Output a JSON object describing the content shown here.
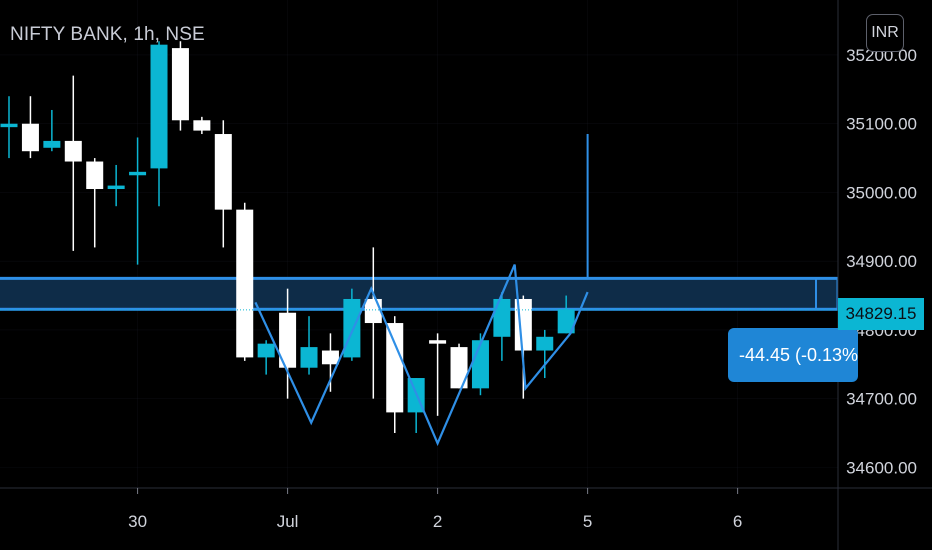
{
  "header": {
    "symbol_title": "NIFTY BANK, 1h, NSE",
    "currency": "INR"
  },
  "price_label": "34829.15",
  "change_tooltip": "-44.45 (-0.13%)",
  "colors": {
    "up_candle": "#0bb6d3",
    "down_candle": "#ffffff",
    "pattern_line": "#2f8fe6",
    "zone_fill": "#0e2c48",
    "zone_border": "#2f8fe6",
    "axis_text": "#d1d4dc",
    "grid": "#1e222d"
  },
  "chart_data": {
    "type": "candlestick",
    "title": "NIFTY BANK, 1h, NSE",
    "xlabel": "",
    "ylabel": "",
    "ylim": [
      34570,
      35280
    ],
    "y_ticks": [
      34600,
      34700,
      34800,
      34900,
      35000,
      35100,
      35200
    ],
    "y_tick_labels": [
      "34600.00",
      "34700.00",
      "34800.00",
      "34900.00",
      "35000.00",
      "35100.00",
      "35200.00"
    ],
    "x_ticks": [
      {
        "label": "30",
        "index": 6
      },
      {
        "label": "Jul",
        "index": 13
      },
      {
        "label": "2",
        "index": 20
      },
      {
        "label": "5",
        "index": 27
      },
      {
        "label": "6",
        "index": 34
      }
    ],
    "candles": [
      {
        "index": 0,
        "open": 35095,
        "high": 35140,
        "low": 35050,
        "close": 35100
      },
      {
        "index": 1,
        "open": 35100,
        "high": 35140,
        "low": 35050,
        "close": 35060
      },
      {
        "index": 2,
        "open": 35065,
        "high": 35120,
        "low": 35060,
        "close": 35075
      },
      {
        "index": 3,
        "open": 35075,
        "high": 35170,
        "low": 34915,
        "close": 35045
      },
      {
        "index": 4,
        "open": 35045,
        "high": 35050,
        "low": 34920,
        "close": 35005
      },
      {
        "index": 5,
        "open": 35005,
        "high": 35040,
        "low": 34980,
        "close": 35010
      },
      {
        "index": 6,
        "open": 35025,
        "high": 35080,
        "low": 34895,
        "close": 35030
      },
      {
        "index": 7,
        "open": 35035,
        "high": 35220,
        "low": 34980,
        "close": 35215
      },
      {
        "index": 8,
        "open": 35210,
        "high": 35220,
        "low": 35090,
        "close": 35105
      },
      {
        "index": 9,
        "open": 35105,
        "high": 35110,
        "low": 35085,
        "close": 35090
      },
      {
        "index": 10,
        "open": 35085,
        "high": 35105,
        "low": 34920,
        "close": 34975
      },
      {
        "index": 11,
        "open": 34975,
        "high": 34985,
        "low": 34755,
        "close": 34760
      },
      {
        "index": 12,
        "open": 34760,
        "high": 34785,
        "low": 34735,
        "close": 34780
      },
      {
        "index": 13,
        "open": 34825,
        "high": 34860,
        "low": 34700,
        "close": 34745
      },
      {
        "index": 14,
        "open": 34745,
        "high": 34820,
        "low": 34735,
        "close": 34775
      },
      {
        "index": 15,
        "open": 34770,
        "high": 34795,
        "low": 34710,
        "close": 34750
      },
      {
        "index": 16,
        "open": 34760,
        "high": 34860,
        "low": 34755,
        "close": 34845
      },
      {
        "index": 17,
        "open": 34845,
        "high": 34920,
        "low": 34700,
        "close": 34810
      },
      {
        "index": 18,
        "open": 34810,
        "high": 34820,
        "low": 34650,
        "close": 34680
      },
      {
        "index": 19,
        "open": 34680,
        "high": 34730,
        "low": 34650,
        "close": 34730
      },
      {
        "index": 20,
        "open": 34785,
        "high": 34795,
        "low": 34675,
        "close": 34780
      },
      {
        "index": 21,
        "open": 34775,
        "high": 34780,
        "low": 34715,
        "close": 34715
      },
      {
        "index": 22,
        "open": 34715,
        "high": 34795,
        "low": 34705,
        "close": 34785
      },
      {
        "index": 23,
        "open": 34790,
        "high": 34855,
        "low": 34755,
        "close": 34845
      },
      {
        "index": 24,
        "open": 34845,
        "high": 34850,
        "low": 34700,
        "close": 34770
      },
      {
        "index": 25,
        "open": 34770,
        "high": 34800,
        "low": 34730,
        "close": 34790
      },
      {
        "index": 26,
        "open": 34795,
        "high": 34850,
        "low": 34795,
        "close": 34830
      }
    ],
    "last_price": 34829.15,
    "change": -44.45,
    "change_percent": -0.13,
    "resistance_zone": {
      "low": 34830,
      "high": 34875
    },
    "spike_line": {
      "index": 27,
      "from": 34875,
      "to": 35085
    },
    "pattern_line": [
      {
        "index": 11.5,
        "price": 34840
      },
      {
        "index": 14.1,
        "price": 34665
      },
      {
        "index": 16.9,
        "price": 34860
      },
      {
        "index": 20.0,
        "price": 34635
      },
      {
        "index": 23.6,
        "price": 34895
      },
      {
        "index": 24.1,
        "price": 34715
      },
      {
        "index": 26.2,
        "price": 34795
      },
      {
        "index": 27.0,
        "price": 34855
      }
    ]
  }
}
